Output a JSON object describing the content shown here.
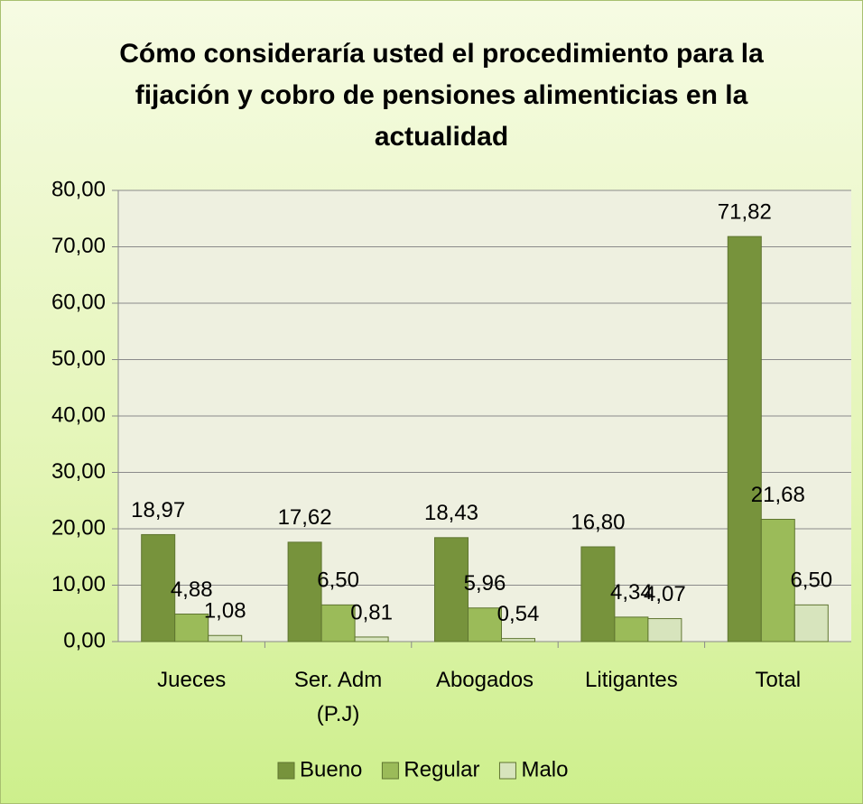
{
  "chart_data": {
    "type": "bar",
    "title": "Cómo consideraría usted el procedimiento para la fijación y cobro de pensiones alimenticias en la actualidad",
    "categories": [
      "Jueces",
      "Ser. Adm (P.J)",
      "Abogados",
      "Litigantes",
      "Total"
    ],
    "series": [
      {
        "name": "Bueno",
        "color": "#77933c",
        "values": [
          18.97,
          17.62,
          18.43,
          16.8,
          71.82
        ],
        "value_labels": [
          "18,97",
          "17,62",
          "18,43",
          "16,80",
          "71,82"
        ]
      },
      {
        "name": "Regular",
        "color": "#9bbb59",
        "values": [
          4.88,
          6.5,
          5.96,
          4.34,
          21.68
        ],
        "value_labels": [
          "4,88",
          "6,50",
          "5,96",
          "4,34",
          "21,68"
        ]
      },
      {
        "name": "Malo",
        "color": "#d7e4bd",
        "values": [
          1.08,
          0.81,
          0.54,
          4.07,
          6.5
        ],
        "value_labels": [
          "1,08",
          "0,81",
          "0,54",
          "4,07",
          "6,50"
        ]
      }
    ],
    "ylim": [
      0,
      80
    ],
    "yticks": [
      {
        "value": 0,
        "label": "0,00"
      },
      {
        "value": 10,
        "label": "10,00"
      },
      {
        "value": 20,
        "label": "20,00"
      },
      {
        "value": 30,
        "label": "30,00"
      },
      {
        "value": 40,
        "label": "40,00"
      },
      {
        "value": 50,
        "label": "50,00"
      },
      {
        "value": 60,
        "label": "60,00"
      },
      {
        "value": 70,
        "label": "70,00"
      },
      {
        "value": 80,
        "label": "80,00"
      }
    ],
    "grid": true,
    "legend": "bottom"
  }
}
